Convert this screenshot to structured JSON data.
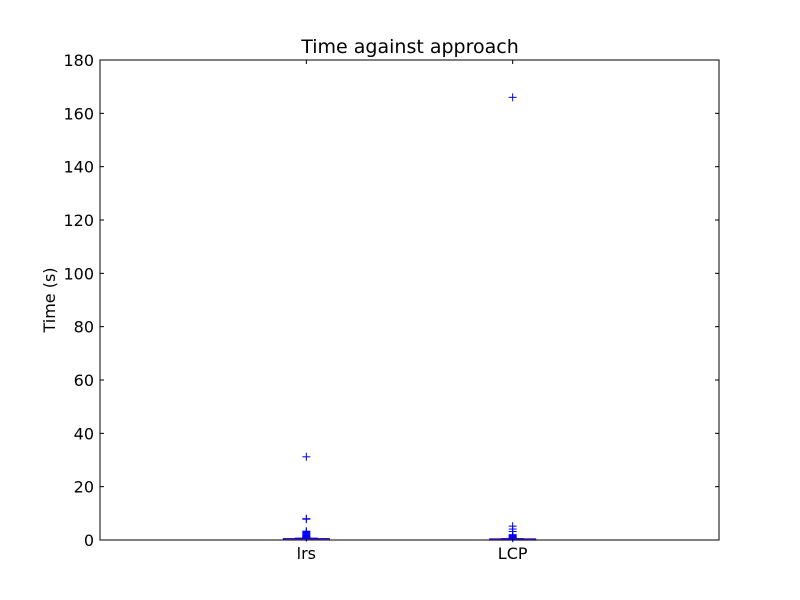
{
  "chart_data": {
    "type": "box",
    "title": "Time against approach",
    "xlabel": "",
    "ylabel": "Time (s)",
    "ylim": [
      0,
      180
    ],
    "yticks": [
      0,
      20,
      40,
      60,
      80,
      100,
      120,
      140,
      160,
      180
    ],
    "categories": [
      "lrs",
      "LCP"
    ],
    "grid": false,
    "legend": "none",
    "colors": {
      "box": "#0000ff",
      "median": "#ff0000",
      "outlier": "#0000ff",
      "axes": "#000000"
    },
    "boxes": [
      {
        "category": "lrs",
        "whisker_low": 0.0,
        "q1": 0.05,
        "median": 0.1,
        "q3": 0.3,
        "whisker_high": 0.7,
        "outliers": [
          0.9,
          1.1,
          1.3,
          1.5,
          1.8,
          2.1,
          2.4,
          2.7,
          3.0,
          3.3,
          7.8,
          8.0,
          31.2
        ]
      },
      {
        "category": "LCP",
        "whisker_low": 0.0,
        "q1": 0.03,
        "median": 0.08,
        "q3": 0.2,
        "whisker_high": 0.5,
        "outliers": [
          0.7,
          0.9,
          1.1,
          1.4,
          1.7,
          2.0,
          3.2,
          4.1,
          5.2,
          166.0
        ]
      }
    ]
  }
}
